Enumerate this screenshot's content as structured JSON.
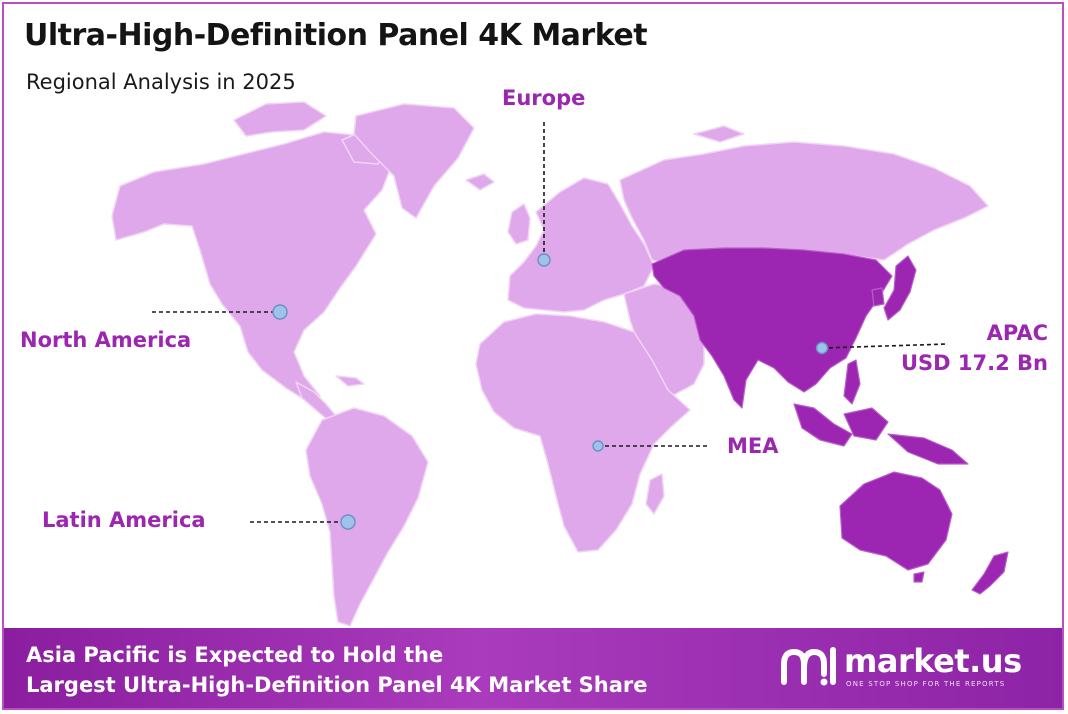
{
  "header": {
    "title": "Ultra-High-Definition Panel 4K Market",
    "subtitle": "Regional Analysis in 2025"
  },
  "colors": {
    "land": "#dfa8ea",
    "highlight": "#9c25b1",
    "label": "#9b26b0",
    "marker": "#9ec3ea",
    "banner": "#a032b4"
  },
  "regions": {
    "europe": {
      "label": "Europe"
    },
    "north_america": {
      "label": "North America"
    },
    "apac": {
      "label": "APAC",
      "value": "USD 17.2 Bn",
      "highlighted": true
    },
    "mea": {
      "label": "MEA"
    },
    "latin_america": {
      "label": "Latin America"
    }
  },
  "banner": {
    "line1": "Asia Pacific is Expected to Hold the",
    "line2": "Largest Ultra-High-Definition Panel 4K Market Share"
  },
  "brand": {
    "name": "market.us",
    "tagline": "ONE STOP SHOP FOR THE REPORTS",
    "logo_icon": "market-us-logo-icon"
  }
}
